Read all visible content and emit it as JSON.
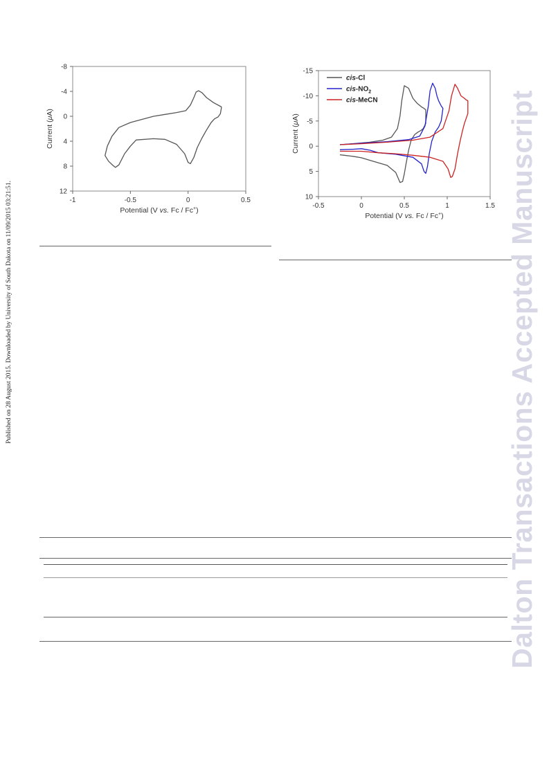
{
  "side_note": "Published on 28 August 2015. Downloaded by University of South Dakota on 11/09/2015 03:21:51.",
  "watermark": "Dalton Transactions Accepted Manuscript",
  "chart_data": [
    {
      "type": "line",
      "xlabel_parts": [
        "Potential (V ",
        "vs.",
        " Fc / Fc",
        "+",
        ")"
      ],
      "ylabel_parts": [
        "Current (",
        "μ",
        "A)"
      ],
      "xlim": [
        -1,
        0.5
      ],
      "ylim": [
        -8,
        12
      ],
      "y_inverted": true,
      "xticks": [
        -1,
        -0.5,
        0,
        0.5
      ],
      "xtick_labels": [
        "-1",
        "-0.5",
        "0",
        "0.5"
      ],
      "yticks": [
        -8,
        -4,
        0,
        4,
        8,
        12
      ],
      "ytick_labels": [
        "-8",
        "-4",
        "0",
        "4",
        "8",
        "12"
      ],
      "grid": false,
      "series": [
        {
          "color": "#555555",
          "x": [
            0.29,
            0.22,
            0.16,
            0.12,
            0.09,
            0.07,
            0.05,
            0.02,
            -0.02,
            -0.1,
            -0.2,
            -0.3,
            -0.4,
            -0.5,
            -0.6,
            -0.66,
            -0.7,
            -0.72,
            -0.69,
            -0.65,
            -0.63,
            -0.6,
            -0.55,
            -0.5,
            -0.45,
            -0.3,
            -0.2,
            -0.1,
            -0.03,
            0.0,
            0.02,
            0.05,
            0.08,
            0.12,
            0.16,
            0.2,
            0.23,
            0.25,
            0.26,
            0.28,
            0.29
          ],
          "y": [
            -1.5,
            -2.2,
            -3.0,
            -3.8,
            -4.1,
            -3.9,
            -3.0,
            -1.8,
            -0.9,
            -0.6,
            -0.3,
            0.0,
            0.5,
            1.0,
            1.8,
            3.2,
            4.8,
            6.3,
            7.2,
            7.9,
            8.2,
            7.8,
            6.0,
            4.8,
            3.8,
            3.6,
            3.7,
            4.5,
            6.0,
            7.4,
            7.6,
            6.6,
            5.0,
            3.5,
            2.2,
            1.0,
            0.4,
            0.2,
            0.1,
            -0.4,
            -1.5
          ]
        }
      ]
    },
    {
      "type": "line",
      "xlabel_parts": [
        "Potential (V ",
        "vs.",
        " Fc / Fc",
        "+",
        ")"
      ],
      "ylabel_parts": [
        "Current (",
        "μ",
        "A)"
      ],
      "xlim": [
        -0.5,
        1.5
      ],
      "ylim": [
        -15,
        10
      ],
      "y_inverted": true,
      "xticks": [
        -0.5,
        0,
        0.5,
        1,
        1.5
      ],
      "xtick_labels": [
        "-0.5",
        "0",
        "0.5",
        "1",
        "1.5"
      ],
      "yticks": [
        -15,
        -10,
        -5,
        0,
        5,
        10
      ],
      "ytick_labels": [
        "-15",
        "-10",
        "-5",
        "0",
        "5",
        "10"
      ],
      "grid": false,
      "legend_position": "top-left",
      "series": [
        {
          "name_prefix": "cis",
          "name_suffix": "-Cl",
          "name_sub": "",
          "color": "#555555",
          "x": [
            -0.25,
            -0.1,
            0.1,
            0.25,
            0.35,
            0.42,
            0.45,
            0.47,
            0.5,
            0.55,
            0.6,
            0.65,
            0.7,
            0.73,
            0.75,
            0.75,
            0.72,
            0.7,
            0.66,
            0.62,
            0.58,
            0.55,
            0.52,
            0.5,
            0.48,
            0.45,
            0.4,
            0.3,
            0.2,
            0.1,
            0.0,
            -0.1,
            -0.2,
            -0.25
          ],
          "y": [
            -0.3,
            -0.5,
            -0.8,
            -1.2,
            -1.8,
            -3.5,
            -6.0,
            -9.0,
            -12.0,
            -11.5,
            -9.5,
            -8.5,
            -7.8,
            -7.5,
            -7.2,
            -4.5,
            -3.5,
            -3.2,
            -2.8,
            -2.3,
            -1.2,
            0.8,
            3.5,
            5.5,
            7.0,
            7.2,
            5.2,
            3.8,
            3.3,
            2.8,
            2.3,
            2.0,
            1.8,
            1.7
          ]
        },
        {
          "name_prefix": "cis",
          "name_suffix": "-NO",
          "name_sub": "2",
          "color": "#2222cc",
          "x": [
            -0.25,
            0.0,
            0.3,
            0.55,
            0.68,
            0.74,
            0.78,
            0.8,
            0.83,
            0.86,
            0.88,
            0.9,
            0.93,
            0.95,
            0.93,
            0.9,
            0.86,
            0.82,
            0.79,
            0.77,
            0.75,
            0.73,
            0.7,
            0.6,
            0.4,
            0.2,
            0.1,
            0.0,
            -0.1,
            -0.25
          ],
          "y": [
            -0.3,
            -0.6,
            -0.9,
            -1.3,
            -2.0,
            -4.0,
            -8.0,
            -11.0,
            -12.5,
            -11.5,
            -10.0,
            -9.0,
            -8.0,
            -7.5,
            -5.0,
            -3.8,
            -2.8,
            -1.0,
            1.5,
            4.0,
            5.4,
            5.0,
            3.5,
            2.2,
            1.6,
            1.3,
            0.8,
            0.5,
            0.6,
            0.7
          ]
        },
        {
          "name_prefix": "cis",
          "name_suffix": "-MeCN",
          "name_sub": "",
          "color": "#cc2222",
          "x": [
            -0.25,
            0.0,
            0.3,
            0.6,
            0.8,
            0.95,
            1.02,
            1.05,
            1.09,
            1.12,
            1.16,
            1.2,
            1.22,
            1.24,
            1.24,
            1.2,
            1.18,
            1.15,
            1.12,
            1.09,
            1.06,
            1.04,
            1.01,
            0.95,
            0.8,
            0.6,
            0.4,
            0.2,
            0.0,
            -0.25
          ],
          "y": [
            -0.3,
            -0.5,
            -0.8,
            -1.2,
            -1.8,
            -3.5,
            -7.0,
            -10.0,
            -12.3,
            -11.5,
            -10.0,
            -9.5,
            -9.2,
            -9.0,
            -6.5,
            -4.5,
            -3.2,
            -1.0,
            1.5,
            4.5,
            6.0,
            6.2,
            4.5,
            3.0,
            2.2,
            1.8,
            1.5,
            1.3,
            1.0,
            1.0
          ]
        }
      ]
    }
  ]
}
